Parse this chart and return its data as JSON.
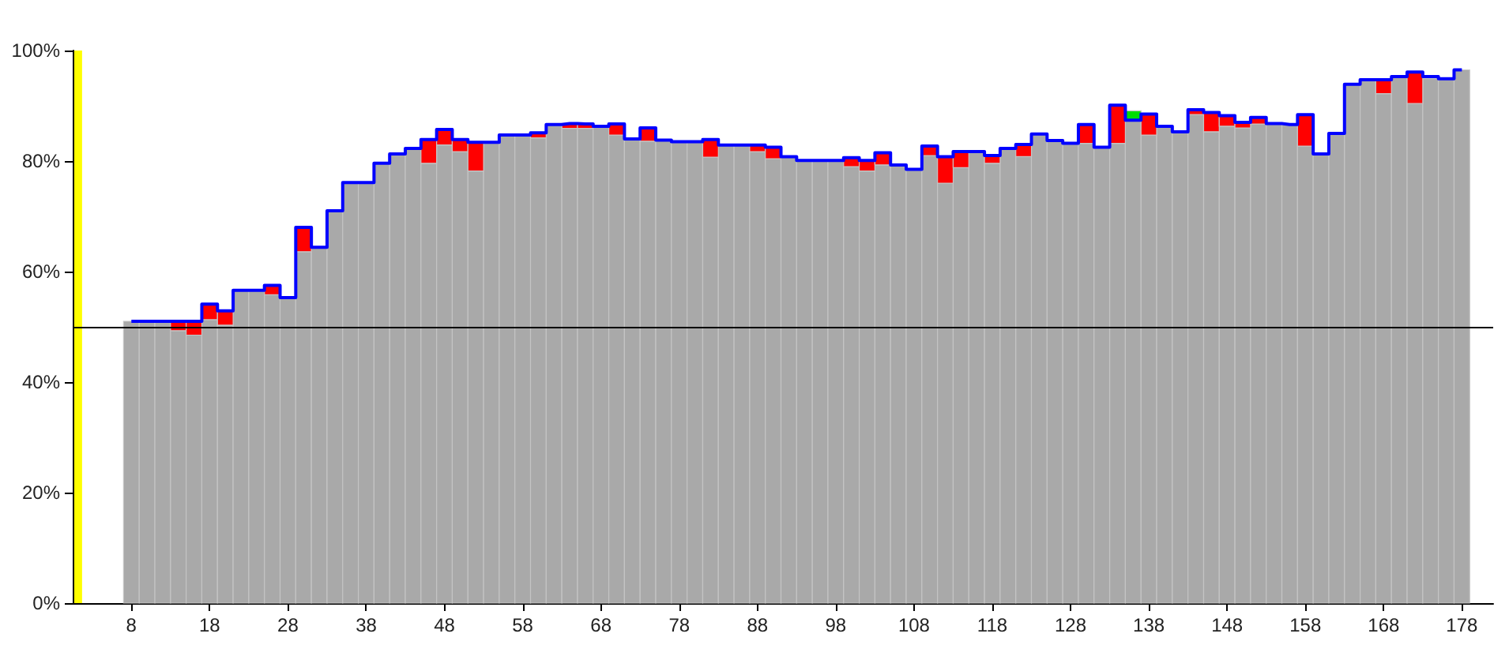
{
  "chart_data": {
    "type": "bar",
    "stacked": true,
    "x": [
      8,
      10,
      12,
      14,
      16,
      18,
      20,
      22,
      24,
      26,
      28,
      30,
      32,
      34,
      36,
      38,
      40,
      42,
      44,
      46,
      48,
      50,
      52,
      54,
      56,
      58,
      60,
      62,
      64,
      66,
      68,
      70,
      72,
      74,
      76,
      78,
      80,
      82,
      84,
      86,
      88,
      90,
      92,
      94,
      96,
      98,
      100,
      102,
      104,
      106,
      108,
      110,
      112,
      114,
      116,
      118,
      120,
      122,
      124,
      126,
      128,
      130,
      132,
      134,
      136,
      138,
      140,
      142,
      144,
      146,
      148,
      150,
      152,
      154,
      156,
      158,
      160,
      162,
      164,
      166,
      168,
      170,
      172,
      174,
      176,
      178
    ],
    "series": [
      {
        "color": "#a9a9a9",
        "values": [
          51,
          51,
          51,
          49.3,
          48.5,
          51.3,
          50.3,
          56.6,
          56.6,
          55.8,
          55.3,
          63.6,
          64.4,
          71.0,
          76.1,
          76.1,
          79.6,
          81.3,
          82.3,
          79.6,
          82.9,
          81.7,
          78.2,
          83.4,
          84.7,
          84.7,
          84.2,
          86.6,
          85.9,
          85.9,
          86.3,
          84.7,
          84.0,
          83.6,
          83.8,
          83.5,
          83.5,
          80.7,
          82.9,
          82.9,
          81.7,
          80.4,
          80.8,
          80.1,
          80.1,
          80.1,
          79.0,
          78.2,
          79.3,
          79.3,
          78.5,
          81.0,
          76.0,
          78.8,
          81.7,
          79.6,
          82.3,
          80.8,
          84.9,
          83.7,
          83.2,
          83.2,
          82.5,
          83.2,
          87.4,
          84.7,
          86.3,
          85.3,
          88.4,
          85.3,
          86.3,
          86.0,
          86.7,
          86.8,
          86.6,
          82.7,
          81.3,
          85.0,
          93.9,
          94.7,
          92.2,
          95.3,
          90.4,
          94.9,
          94.9,
          96.5
        ]
      },
      {
        "color": "#ff0000",
        "values": [
          null,
          null,
          null,
          1.7,
          2.5,
          2.8,
          2.6,
          null,
          null,
          1.7,
          null,
          4.4,
          null,
          null,
          null,
          null,
          null,
          null,
          null,
          4.3,
          2.8,
          2.2,
          5.2,
          null,
          null,
          null,
          0.9,
          null,
          0.9,
          0.8,
          null,
          2.0,
          null,
          2.4,
          null,
          null,
          null,
          3.2,
          null,
          null,
          1.2,
          2.1,
          null,
          null,
          null,
          null,
          1.6,
          1.9,
          2.2,
          null,
          null,
          1.7,
          4.8,
          2.9,
          null,
          1.4,
          null,
          2.2,
          null,
          null,
          null,
          3.4,
          null,
          6.9,
          null,
          3.8,
          null,
          null,
          0.9,
          3.5,
          1.9,
          1.0,
          1.2,
          null,
          null,
          5.7,
          null,
          null,
          null,
          null,
          2.5,
          null,
          5.7,
          null,
          null,
          null
        ]
      },
      {
        "color": "#00dd00",
        "values": [
          null,
          null,
          null,
          null,
          null,
          null,
          null,
          null,
          null,
          null,
          null,
          null,
          null,
          null,
          null,
          null,
          null,
          null,
          null,
          null,
          null,
          null,
          null,
          null,
          null,
          null,
          null,
          null,
          null,
          null,
          null,
          null,
          null,
          null,
          null,
          null,
          null,
          null,
          null,
          null,
          null,
          null,
          null,
          null,
          null,
          null,
          null,
          null,
          null,
          null,
          null,
          null,
          null,
          null,
          null,
          null,
          null,
          null,
          null,
          null,
          null,
          null,
          null,
          null,
          1.7,
          null,
          null,
          null,
          null,
          null,
          null,
          null,
          null,
          null,
          null,
          null,
          null,
          null,
          null,
          null,
          null,
          null,
          null,
          null,
          null,
          null
        ]
      },
      {
        "type": "step",
        "color": "#0000ff",
        "values": [
          51,
          51,
          51,
          51,
          51,
          54.1,
          52.9,
          56.6,
          56.6,
          57.5,
          55.3,
          68,
          64.4,
          71,
          76.1,
          76.1,
          79.6,
          81.3,
          82.3,
          83.9,
          85.7,
          83.9,
          83.4,
          83.4,
          84.7,
          84.7,
          85.1,
          86.6,
          86.8,
          86.7,
          86.3,
          86.7,
          84,
          86,
          83.8,
          83.5,
          83.5,
          83.9,
          82.9,
          82.9,
          82.9,
          82.5,
          80.8,
          80.1,
          80.1,
          80.1,
          80.6,
          80.1,
          81.5,
          79.3,
          78.5,
          82.7,
          80.8,
          81.7,
          81.7,
          81,
          82.3,
          83,
          84.9,
          83.7,
          83.2,
          86.6,
          82.5,
          90.1,
          87.4,
          88.5,
          86.3,
          85.3,
          89.3,
          88.8,
          88.2,
          87,
          87.9,
          86.8,
          86.6,
          88.4,
          81.3,
          85,
          93.9,
          94.7,
          94.7,
          95.3,
          96.1,
          95.3,
          94.9,
          96.5
        ]
      }
    ],
    "xlim": [
      0.5,
      182
    ],
    "xticks": [
      8,
      18,
      28,
      38,
      48,
      58,
      68,
      78,
      88,
      98,
      108,
      118,
      128,
      138,
      148,
      158,
      168,
      178
    ],
    "ylim": [
      0,
      100
    ],
    "yticks": [
      {
        "value": 0,
        "label": "0%"
      },
      {
        "value": 20,
        "label": "20%"
      },
      {
        "value": 40,
        "label": "40%"
      },
      {
        "value": 60,
        "label": "60%"
      },
      {
        "value": 80,
        "label": "80%"
      },
      {
        "value": 100,
        "label": "100%"
      }
    ],
    "ref_lines": [
      {
        "axis": "y",
        "value": 50,
        "color": "#000000"
      }
    ],
    "bands": [
      {
        "axis": "x",
        "from": 0.7,
        "to": 1.7,
        "color": "#ffff00"
      }
    ],
    "grid": false
  }
}
